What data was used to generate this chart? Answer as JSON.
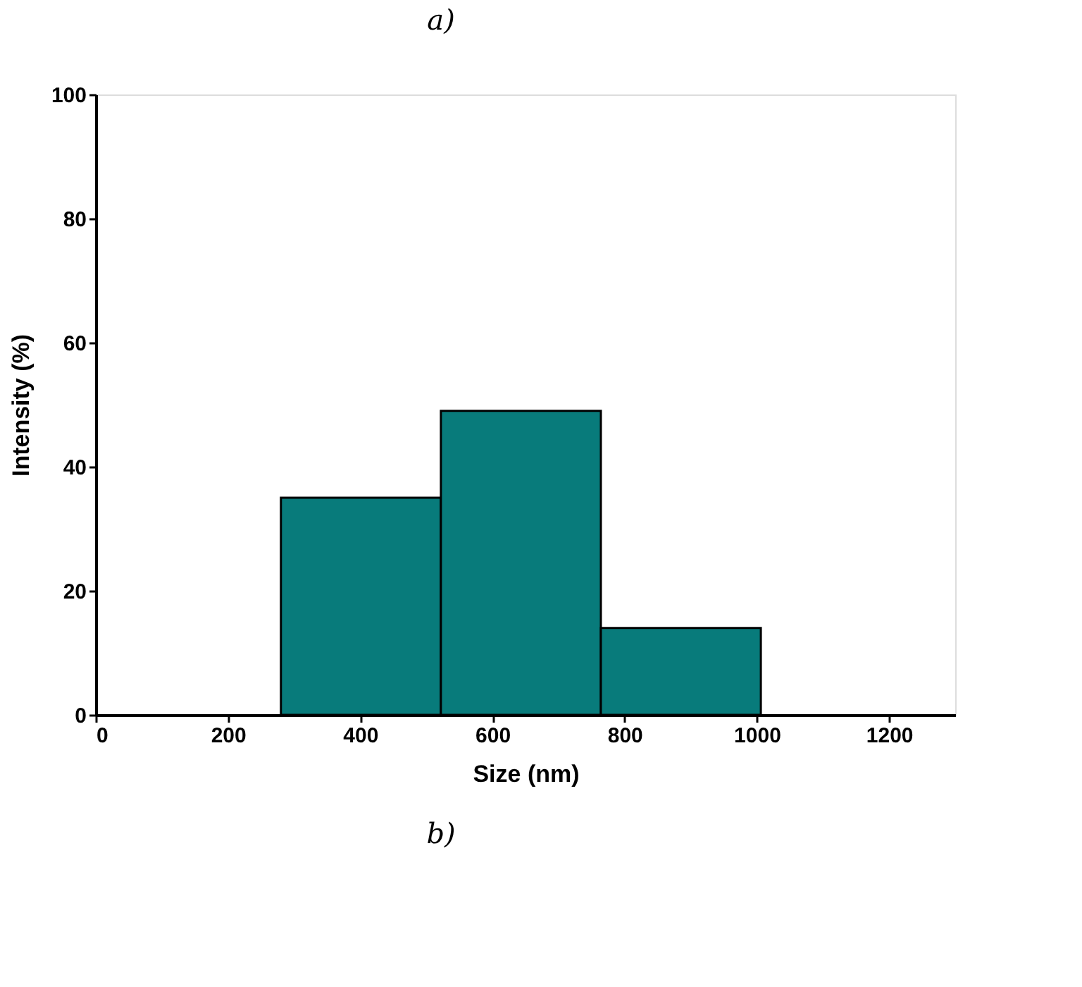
{
  "chart_data": {
    "type": "histogram",
    "title": "a)",
    "xlabel": "Size (nm)",
    "ylabel": "Intensity (%)",
    "bins": [
      280,
      522,
      764,
      1006
    ],
    "values": [
      35,
      49,
      14
    ],
    "color": "#087b7b",
    "xlim": [
      0,
      1300
    ],
    "xticks": [
      0,
      200,
      400,
      600,
      800,
      1000,
      1200
    ],
    "ylim": [
      0,
      100
    ],
    "yticks": [
      0,
      20,
      40,
      60,
      80,
      100
    ],
    "grid": false,
    "annotations": [
      "b)"
    ]
  }
}
